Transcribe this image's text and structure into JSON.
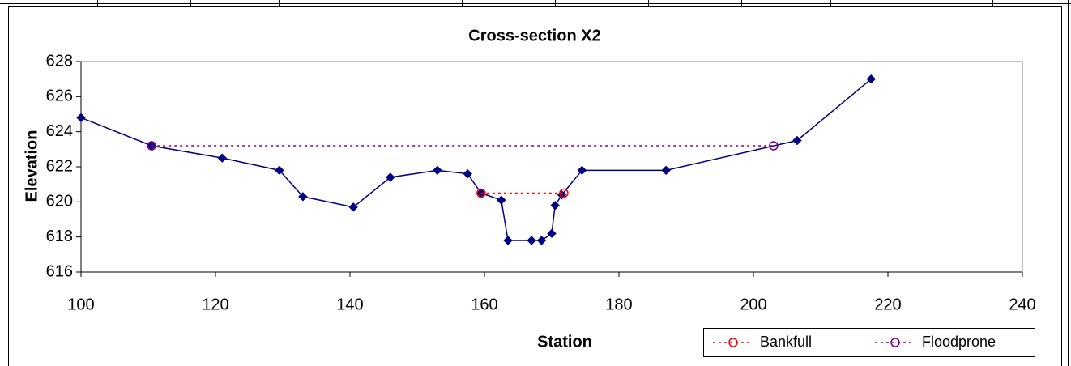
{
  "chart_data": {
    "type": "line",
    "title": "Cross-section X2",
    "xlabel": "Station",
    "ylabel": "Elevation",
    "xlim": [
      100,
      240
    ],
    "xticks": [
      100,
      120,
      140,
      160,
      180,
      200,
      220,
      240
    ],
    "ylim": [
      616,
      628
    ],
    "yticks": [
      616,
      618,
      620,
      622,
      624,
      626,
      628
    ],
    "legend": "lower right",
    "series": [
      {
        "color": "#000080",
        "marker": "diamond",
        "dash": "solid",
        "x": [
          100,
          110.5,
          121,
          129.5,
          133,
          140.5,
          146,
          153,
          157.5,
          159.5,
          162.5,
          163.5,
          167,
          168.5,
          170,
          170.5,
          171.5,
          174.5,
          187,
          206.5,
          217.5
        ],
        "values": [
          624.8,
          623.2,
          622.5,
          621.8,
          620.3,
          619.7,
          621.4,
          621.8,
          621.6,
          620.5,
          620.1,
          617.8,
          617.8,
          617.8,
          618.2,
          619.8,
          620.4,
          621.8,
          621.8,
          623.5,
          627.0
        ]
      },
      {
        "name": "Bankfull",
        "color": "#ff0000",
        "marker": "circle",
        "dash": "dotted",
        "x": [
          159.5,
          171.8
        ],
        "values": [
          620.5,
          620.5
        ]
      },
      {
        "name": "Floodprone",
        "color": "#800080",
        "marker": "circle",
        "dash": "dotted",
        "x": [
          110.5,
          203
        ],
        "values": [
          623.2,
          623.2
        ]
      }
    ]
  }
}
